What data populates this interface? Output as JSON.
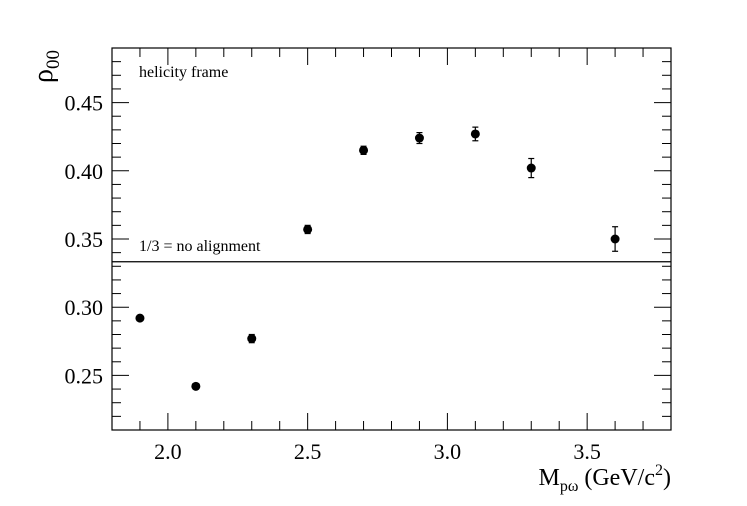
{
  "chart_data": {
    "type": "scatter",
    "xlabel": {
      "main": "M",
      "sub": "pω",
      "rest": " (GeV/c",
      "sup": "2",
      "close": ")"
    },
    "ylabel": {
      "main": "ρ",
      "sub": "00"
    },
    "xlim": [
      1.8,
      3.8
    ],
    "ylim": [
      0.21,
      0.49
    ],
    "xticks": [
      "2.0",
      "2.5",
      "3.0",
      "3.5"
    ],
    "yticks": [
      "0.25",
      "0.30",
      "0.35",
      "0.40",
      "0.45"
    ],
    "points": [
      {
        "x": 1.9,
        "y": 0.292,
        "err": 0.002
      },
      {
        "x": 2.1,
        "y": 0.242,
        "err": 0.002
      },
      {
        "x": 2.3,
        "y": 0.277,
        "err": 0.003
      },
      {
        "x": 2.5,
        "y": 0.357,
        "err": 0.003
      },
      {
        "x": 2.7,
        "y": 0.415,
        "err": 0.003
      },
      {
        "x": 2.9,
        "y": 0.424,
        "err": 0.004
      },
      {
        "x": 3.1,
        "y": 0.427,
        "err": 0.005
      },
      {
        "x": 3.3,
        "y": 0.402,
        "err": 0.007
      },
      {
        "x": 3.6,
        "y": 0.35,
        "err": 0.009
      }
    ],
    "reference_line": {
      "y": 0.3333,
      "label": "1/3 = no alignment"
    },
    "annotations": [
      "helicity frame"
    ],
    "grid": false,
    "legend": "none"
  }
}
